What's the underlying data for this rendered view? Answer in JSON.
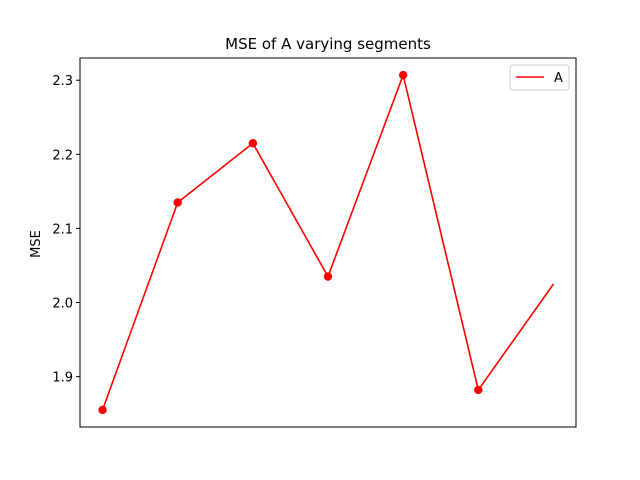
{
  "chart_data": {
    "type": "line",
    "title": "MSE of A varying segments",
    "xlabel": "",
    "ylabel": "MSE",
    "x": [
      0,
      1,
      2,
      3,
      4,
      5,
      6
    ],
    "series": [
      {
        "name": "A",
        "color": "#ff0000",
        "values": [
          1.855,
          2.135,
          2.215,
          2.035,
          2.307,
          1.882,
          2.025
        ],
        "markers": [
          true,
          true,
          true,
          true,
          true,
          true,
          false
        ]
      }
    ],
    "xlim": [
      -0.3,
      6.3
    ],
    "ylim": [
      1.832,
      2.33
    ],
    "yticks": [
      1.9,
      2.0,
      2.1,
      2.2,
      2.3
    ],
    "ytick_labels": [
      "1.9",
      "2.0",
      "2.1",
      "2.2",
      "2.3"
    ],
    "show_xticks": false,
    "grid": false,
    "legend_position": "top-right"
  }
}
